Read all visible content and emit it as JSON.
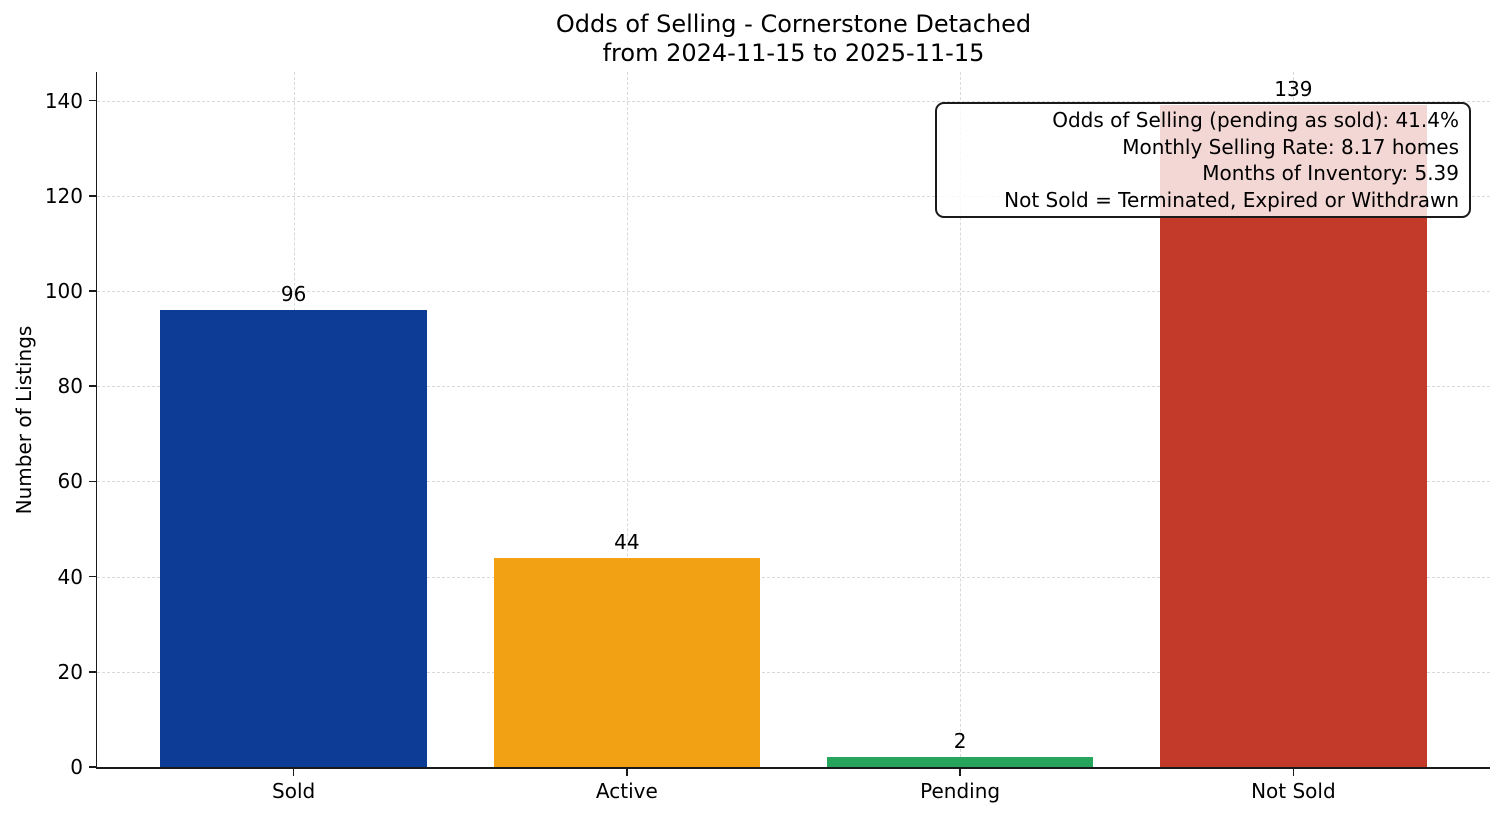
{
  "figure": {
    "title_line1": "Odds of Selling - Cornerstone Detached",
    "title_line2": "from 2024-11-15 to 2025-11-15",
    "ylabel": "Number of Listings"
  },
  "annotation_box": {
    "lines": [
      "Odds of Selling (pending as sold): 41.4%",
      "Monthly Selling Rate: 8.17 homes",
      "Months of Inventory: 5.39",
      "Not Sold = Terminated, Expired or Withdrawn"
    ]
  },
  "chart_data": {
    "type": "bar",
    "title": "Odds of Selling - Cornerstone Detached\nfrom 2024-11-15 to 2025-11-15",
    "categories": [
      "Sold",
      "Active",
      "Pending",
      "Not Sold"
    ],
    "values": [
      96,
      44,
      2,
      139
    ],
    "value_labels": [
      "96",
      "44",
      "2",
      "139"
    ],
    "bar_colors": [
      "#0d3c96",
      "#f1a113",
      "#28a55c",
      "#c33a2b"
    ],
    "xlabel": "",
    "ylabel": "Number of Listings",
    "ylim": [
      0,
      146
    ],
    "yticks": [
      0,
      20,
      40,
      60,
      80,
      100,
      120,
      140
    ],
    "grid": {
      "visible": true,
      "style": "dashed",
      "color": "#d9d9d9",
      "axes": "both"
    },
    "legend": "none",
    "annotations": [
      "Odds of Selling (pending as sold): 41.4%",
      "Monthly Selling Rate: 8.17 homes",
      "Months of Inventory: 5.39",
      "Not Sold = Terminated, Expired or Withdrawn"
    ]
  },
  "style": {
    "text_color": "#1a1a1a",
    "spine_color": "#1a1a1a",
    "grid_color": "#d9d9d9",
    "background": "#ffffff"
  }
}
